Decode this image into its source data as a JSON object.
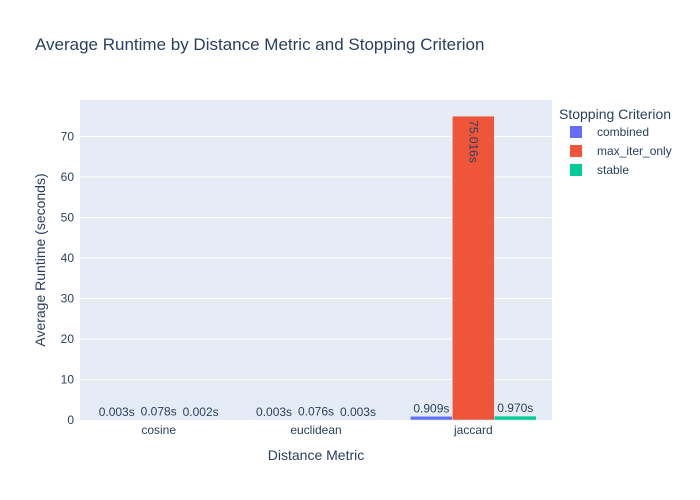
{
  "chart_data": {
    "type": "bar",
    "title": "Average Runtime by Distance Metric and Stopping Criterion",
    "xlabel": "Distance Metric",
    "ylabel": "Average Runtime (seconds)",
    "categories": [
      "cosine",
      "euclidean",
      "jaccard"
    ],
    "ylim": [
      0,
      79
    ],
    "yticks": [
      0,
      10,
      20,
      30,
      40,
      50,
      60,
      70
    ],
    "grid": true,
    "legend": {
      "title": "Stopping Criterion",
      "placement": "right"
    },
    "series": [
      {
        "name": "combined",
        "color": "#636efa",
        "values": [
          0.003,
          0.003,
          0.909
        ],
        "labels": [
          "0.003s",
          "0.003s",
          "0.909s"
        ]
      },
      {
        "name": "max_iter_only",
        "color": "#ef553b",
        "values": [
          0.078,
          0.076,
          75.016
        ],
        "labels": [
          "0.078s",
          "0.076s",
          "75.016s"
        ]
      },
      {
        "name": "stable",
        "color": "#00cc96",
        "values": [
          0.002,
          0.003,
          0.97
        ],
        "labels": [
          "0.002s",
          "0.003s",
          "0.970s"
        ]
      }
    ]
  }
}
